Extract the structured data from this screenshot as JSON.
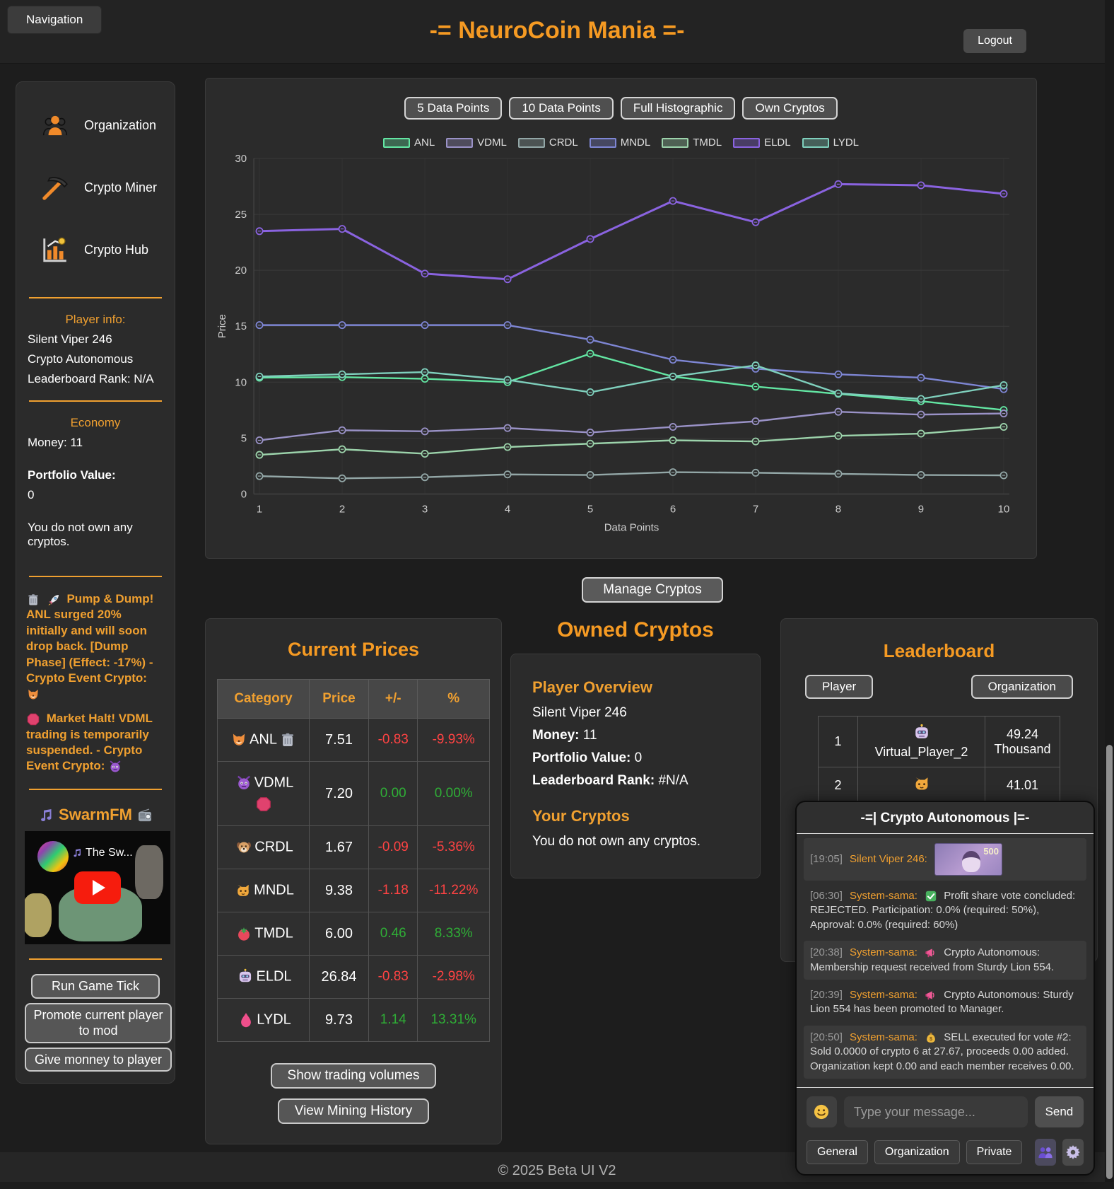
{
  "header": {
    "nav_button": "Navigation",
    "title": "-= NeuroCoin Mania =-",
    "logout_button": "Logout"
  },
  "sidebar": {
    "nav": [
      {
        "label": "Organization",
        "icon": "org-people"
      },
      {
        "label": "Crypto Miner",
        "icon": "pickaxe"
      },
      {
        "label": "Crypto Hub",
        "icon": "chart-hub"
      }
    ],
    "player_info": {
      "heading": "Player info:",
      "name": "Silent Viper 246",
      "organization": "Crypto Autonomous",
      "rank": "Leaderboard Rank: N/A"
    },
    "economy": {
      "heading": "Economy",
      "money": "Money: 11",
      "portfolio_label": "Portfolio Value:",
      "portfolio_value": "0",
      "no_cryptos": "You do not own any cryptos."
    },
    "events": [
      {
        "icons": [
          "trash",
          "rocket"
        ],
        "text": "Pump & Dump! ANL surged 20% initially and will soon drop back. [Dump Phase] (Effect: -17%) - Crypto Event Crypto:",
        "crypto_icon": "fox"
      },
      {
        "icons": [
          "stop"
        ],
        "text": "Market Halt! VDML trading is temporarily suspended. - Crypto Event Crypto:",
        "crypto_icon": "devil"
      }
    ],
    "radio": {
      "title": "SwarmFM",
      "left_icon": "music-note",
      "right_icon": "radio",
      "video_title": "The Sw...",
      "video_title_icon": "music-note"
    },
    "buttons": [
      "Run Game Tick",
      "Promote current player to mod",
      "Give monney to player"
    ]
  },
  "chart": {
    "buttons": [
      "5 Data Points",
      "10 Data Points",
      "Full Histographic",
      "Own Cryptos"
    ]
  },
  "chart_data": {
    "type": "line",
    "x": [
      1,
      2,
      3,
      4,
      5,
      6,
      7,
      8,
      9,
      10
    ],
    "xlabel": "Data Points",
    "ylabel": "Price",
    "ylim": [
      0,
      30
    ],
    "yticks": [
      0,
      5,
      10,
      15,
      20,
      25,
      30
    ],
    "grid": true,
    "legend_position": "top",
    "series": [
      {
        "name": "ANL",
        "color": "#63e6a3",
        "values": [
          10.4,
          10.45,
          10.3,
          10.0,
          12.55,
          10.5,
          9.6,
          8.95,
          8.3,
          7.51
        ]
      },
      {
        "name": "VDML",
        "color": "#9a92c7",
        "values": [
          4.8,
          5.7,
          5.6,
          5.9,
          5.5,
          6.0,
          6.5,
          7.35,
          7.1,
          7.2
        ]
      },
      {
        "name": "CRDL",
        "color": "#93a7a7",
        "values": [
          1.6,
          1.4,
          1.5,
          1.75,
          1.7,
          1.95,
          1.9,
          1.8,
          1.7,
          1.67
        ]
      },
      {
        "name": "MNDL",
        "color": "#7e86d4",
        "values": [
          15.1,
          15.1,
          15.1,
          15.1,
          13.8,
          12.0,
          11.2,
          10.7,
          10.4,
          9.38
        ]
      },
      {
        "name": "TMDL",
        "color": "#9cd3ab",
        "values": [
          3.5,
          4.0,
          3.6,
          4.2,
          4.5,
          4.8,
          4.7,
          5.2,
          5.4,
          6.0
        ]
      },
      {
        "name": "ELDL",
        "color": "#8a63e0",
        "values": [
          23.5,
          23.7,
          19.7,
          19.2,
          22.8,
          26.2,
          24.3,
          27.7,
          27.6,
          26.84
        ]
      },
      {
        "name": "LYDL",
        "color": "#7fd0bd",
        "values": [
          10.5,
          10.7,
          10.9,
          10.2,
          9.1,
          10.5,
          11.5,
          9.0,
          8.5,
          9.73
        ]
      }
    ]
  },
  "manage_button": "Manage Cryptos",
  "prices": {
    "title": "Current Prices",
    "headers": [
      "Category",
      "Price",
      "+/-",
      "%"
    ],
    "rows": [
      {
        "icon": "fox",
        "name": "ANL",
        "status_icon": "trash",
        "price": "7.51",
        "change": "-0.83",
        "pct": "-9.93%",
        "dir": "down"
      },
      {
        "icon": "devil",
        "name": "VDML",
        "status_icon": "stop",
        "price": "7.20",
        "change": "0.00",
        "pct": "0.00%",
        "dir": "up"
      },
      {
        "icon": "dog",
        "name": "CRDL",
        "status_icon": "",
        "price": "1.67",
        "change": "-0.09",
        "pct": "-5.36%",
        "dir": "down"
      },
      {
        "icon": "cat",
        "name": "MNDL",
        "status_icon": "",
        "price": "9.38",
        "change": "-1.18",
        "pct": "-11.22%",
        "dir": "down"
      },
      {
        "icon": "tomato",
        "name": "TMDL",
        "status_icon": "",
        "price": "6.00",
        "change": "0.46",
        "pct": "8.33%",
        "dir": "up"
      },
      {
        "icon": "robot",
        "name": "ELDL",
        "status_icon": "",
        "price": "26.84",
        "change": "-0.83",
        "pct": "-2.98%",
        "dir": "down"
      },
      {
        "icon": "droplet",
        "name": "LYDL",
        "status_icon": "",
        "price": "9.73",
        "change": "1.14",
        "pct": "13.31%",
        "dir": "up"
      }
    ],
    "buttons": [
      "Show trading volumes",
      "View Mining History"
    ]
  },
  "owned": {
    "title": "Owned Cryptos",
    "overview_heading": "Player Overview",
    "player_name": "Silent Viper 246",
    "money_label": "Money:",
    "money_value": "11",
    "portfolio_label": "Portfolio Value:",
    "portfolio_value": "0",
    "rank_label": "Leaderboard Rank:",
    "rank_value": "#N/A",
    "your_cryptos_heading": "Your Cryptos",
    "no_cryptos": "You do not own any cryptos."
  },
  "leaderboard": {
    "title": "Leaderboard",
    "tabs": [
      "Player",
      "Organization"
    ],
    "rows": [
      {
        "rank": "1",
        "icon": "robot",
        "name": "Virtual_Player_2",
        "value": "49.24 Thousand"
      },
      {
        "rank": "2",
        "icon": "cat",
        "name": "",
        "value": "41.01"
      }
    ]
  },
  "chat": {
    "title": "-=| Crypto Autonomous |=-",
    "emoji_button_icon": "smiley",
    "people_button_icon": "people",
    "settings_button_icon": "gear",
    "messages": [
      {
        "time": "[19:05]",
        "name": "Silent Viper 246:",
        "icon": "",
        "text": "",
        "image": "banknote-500"
      },
      {
        "time": "[06:30]",
        "name": "System-sama:",
        "icon": "check",
        "text": "Profit share vote concluded: REJECTED. Participation: 0.0% (required: 50%), Approval: 0.0% (required: 60%)"
      },
      {
        "time": "[20:38]",
        "name": "System-sama:",
        "icon": "megaphone",
        "text": "Crypto Autonomous: Membership request received from Sturdy Lion 554."
      },
      {
        "time": "[20:39]",
        "name": "System-sama:",
        "icon": "megaphone",
        "text": "Crypto Autonomous: Sturdy Lion 554 has been promoted to Manager."
      },
      {
        "time": "[20:50]",
        "name": "System-sama:",
        "icon": "moneybag",
        "text": "SELL executed for vote #2: Sold 0.0000 of crypto 6 at 27.67, proceeds 0.00 added. Organization kept 0.00 and each member receives 0.00."
      }
    ],
    "input_placeholder": "Type your message...",
    "send_button": "Send",
    "tabs": [
      "General",
      "Organization",
      "Private"
    ]
  },
  "footer": "© 2025 Beta UI V2",
  "colors": {
    "accent": "#f59a23",
    "up": "#2fae36",
    "down": "#ff4343"
  }
}
